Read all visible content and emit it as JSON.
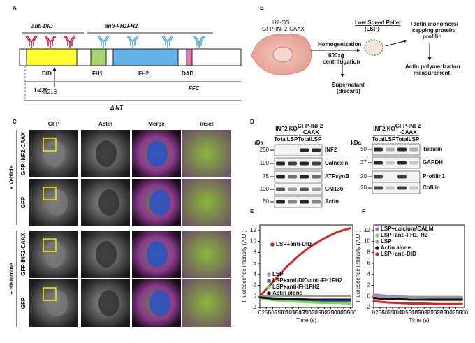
{
  "panel_a": {
    "label": "A",
    "antibodies": [
      "anti-DID",
      "anti-FH1FH2"
    ],
    "domains": [
      "DID",
      "FH1",
      "FH2",
      "DAD"
    ],
    "mutation": "R218",
    "constructs": [
      "1-420",
      "FFC",
      "Δ NT"
    ]
  },
  "panel_b": {
    "label": "B",
    "cell": [
      "U2-OS",
      "GFP-INF2-CAAX"
    ],
    "homogenization": [
      "Homogenization",
      "600xg",
      "centrifugation"
    ],
    "pellet": [
      "Low Speed Pellet",
      "(LSP)"
    ],
    "supernatant": [
      "Supernatant",
      "(discard)"
    ],
    "additions": [
      "+actin monomers/",
      "capping protein/",
      "profilin"
    ],
    "measurement": [
      "Actin polymerization",
      "measurement"
    ]
  },
  "panel_c": {
    "label": "C",
    "columns": [
      "GFP",
      "Actin",
      "Merge",
      "inset"
    ],
    "treatments": [
      "+ Vehicle",
      "+ Histamine"
    ],
    "rows": [
      "GFP-INF2-CAAX",
      "GFP",
      "GFP-INF2-CAAX",
      "GFP"
    ]
  },
  "panel_d": {
    "label": "D",
    "unit": "kDa",
    "groups": [
      "INF2 KO",
      "GFP-INF2",
      "-CAAX"
    ],
    "lanes": [
      "Total",
      "LSP",
      "Total",
      "LSP"
    ],
    "left": {
      "markers": [
        250,
        100,
        75,
        100,
        50
      ],
      "proteins": [
        "INF2",
        "Calnexin",
        "ATPsynB",
        "GM130",
        "Actin"
      ]
    },
    "right": {
      "markers": [
        50,
        37,
        20,
        20
      ],
      "proteins": [
        "Tubulin",
        "GAPDH",
        "Profilin1",
        "Cofilin"
      ]
    }
  },
  "panel_e": {
    "label": "E",
    "y_label": "Fluorescence intensity (A.U.)",
    "x_label": "Time (s)",
    "xlim": [
      0,
      3600
    ],
    "ylim": [
      -2,
      13
    ],
    "xticks": [
      0,
      250,
      500,
      750,
      1000,
      1250,
      1500,
      1750,
      2000,
      2250,
      2500,
      2750,
      3000,
      3250,
      3500
    ],
    "yticks": [
      -2,
      0,
      2,
      4,
      6,
      8,
      10,
      12
    ],
    "x": [
      0,
      500,
      1000,
      1500,
      2000,
      2500,
      3000,
      3500
    ],
    "series": [
      {
        "name": "LSP+anti-DID",
        "color": "#d62728",
        "values": [
          0,
          2.6,
          5.2,
          7.4,
          9.2,
          10.6,
          11.7,
          12.4
        ]
      },
      {
        "name": "LSP",
        "color": "#999999",
        "values": [
          0,
          0,
          0.1,
          0.1,
          0.1,
          0.1,
          0.1,
          0.1
        ]
      },
      {
        "name": "LSP+anti-DID/anti-FH1FH2",
        "color": "#3b5bdb",
        "values": [
          -0.3,
          -0.5,
          -0.6,
          -0.7,
          -0.7,
          -0.8,
          -0.8,
          -0.8
        ]
      },
      {
        "name": "LSP+anti-FH1FH2",
        "color": "#7ed957",
        "values": [
          -0.3,
          -0.7,
          -0.9,
          -1,
          -1.1,
          -1.2,
          -1.2,
          -1.3
        ]
      },
      {
        "name": "Actin alone",
        "color": "#111111",
        "values": [
          -0.2,
          -0.4,
          -0.5,
          -0.5,
          -0.6,
          -0.6,
          -0.6,
          -0.6
        ]
      }
    ]
  },
  "panel_f": {
    "label": "F",
    "y_label": "Fluorescence intensity (A.U.)",
    "x_label": "Time (s)",
    "xlim": [
      0,
      3600
    ],
    "ylim": [
      -2,
      13
    ],
    "xticks": [
      0,
      250,
      500,
      750,
      1000,
      1250,
      1500,
      1750,
      2000,
      2250,
      2500,
      2750,
      3000,
      3250,
      3500
    ],
    "yticks": [
      -2,
      0,
      2,
      4,
      6,
      8,
      10,
      12
    ],
    "x": [
      0,
      500,
      1000,
      1500,
      2000,
      2500,
      3000,
      3500
    ],
    "series": [
      {
        "name": "LSP+calcium/CALM",
        "color": "#b06ad9",
        "values": [
          0.3,
          0.1,
          0,
          -0.1,
          -0.2,
          -0.3,
          -0.4,
          -0.4
        ]
      },
      {
        "name": "LSP+anti-FH1FH2",
        "color": "#7ed957",
        "values": [
          -0.2,
          -0.4,
          -0.5,
          -0.6,
          -0.6,
          -0.7,
          -0.7,
          -0.7
        ]
      },
      {
        "name": "LSP",
        "color": "#999999",
        "values": [
          0,
          -0.1,
          -0.1,
          -0.1,
          -0.1,
          -0.1,
          -0.1,
          -0.1
        ]
      },
      {
        "name": "Actin alone",
        "color": "#111111",
        "values": [
          -0.3,
          -0.5,
          -0.5,
          -0.6,
          -0.6,
          -0.6,
          -0.6,
          -0.6
        ]
      },
      {
        "name": "LSP+anti-DID",
        "color": "#d62728",
        "values": [
          -0.9,
          -1.1,
          -1.2,
          -1.3,
          -1.3,
          -1.4,
          -1.4,
          -1.4
        ]
      }
    ]
  }
}
